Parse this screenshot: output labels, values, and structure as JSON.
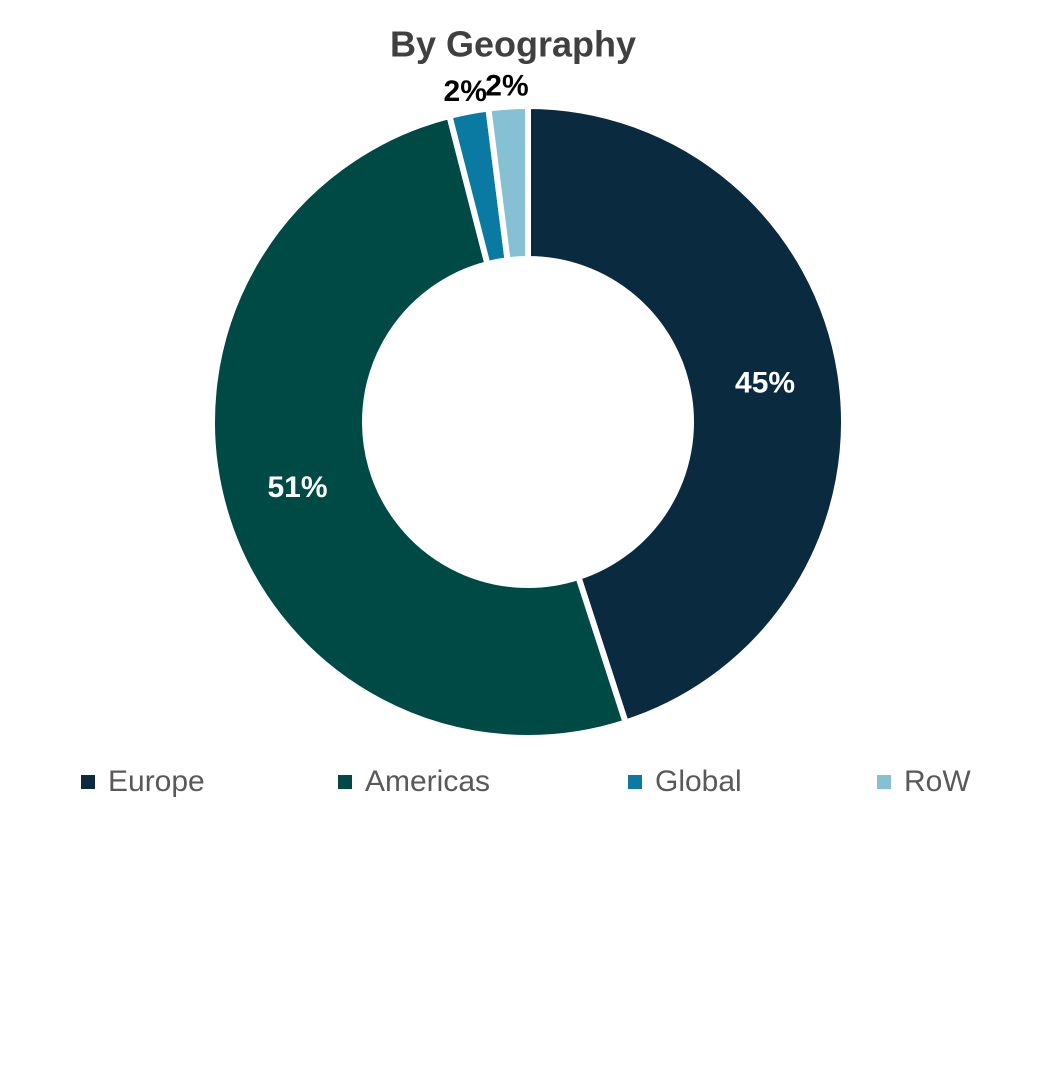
{
  "chart_data": {
    "type": "donut",
    "title": "By Geography",
    "categories": [
      "Europe",
      "Americas",
      "Global",
      "RoW"
    ],
    "values": [
      45,
      51,
      2,
      2
    ],
    "value_labels": [
      "45%",
      "51%",
      "2%",
      "2%"
    ],
    "colors": [
      "#0a2a40",
      "#004a45",
      "#0a7aa3",
      "#85c0d3"
    ],
    "legend": "bottom"
  }
}
